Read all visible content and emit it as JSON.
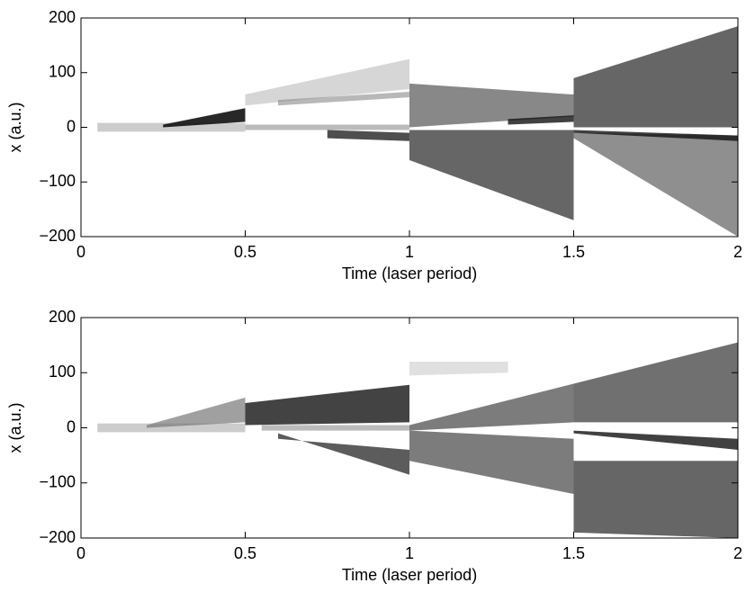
{
  "chart_data": [
    {
      "type": "heatmap",
      "xlabel": "Time (laser period)",
      "ylabel": "x (a.u.)",
      "xlim": [
        0,
        2
      ],
      "ylim": [
        -200,
        200
      ],
      "xticks": [
        0,
        0.5,
        1,
        1.5,
        2
      ],
      "yticks": [
        {
          "value": -200,
          "label": "−200"
        },
        {
          "value": -100,
          "label": "−100"
        },
        0,
        100,
        200
      ]
    },
    {
      "type": "heatmap",
      "xlabel": "Time (laser period)",
      "ylabel": "x (a.u.)",
      "xlim": [
        0,
        2
      ],
      "ylim": [
        -200,
        200
      ],
      "xticks": [
        0,
        0.5,
        1,
        1.5,
        2
      ],
      "yticks": [
        {
          "value": -200,
          "label": "−200"
        },
        {
          "value": -100,
          "label": "−100"
        },
        0,
        100,
        200
      ]
    }
  ]
}
